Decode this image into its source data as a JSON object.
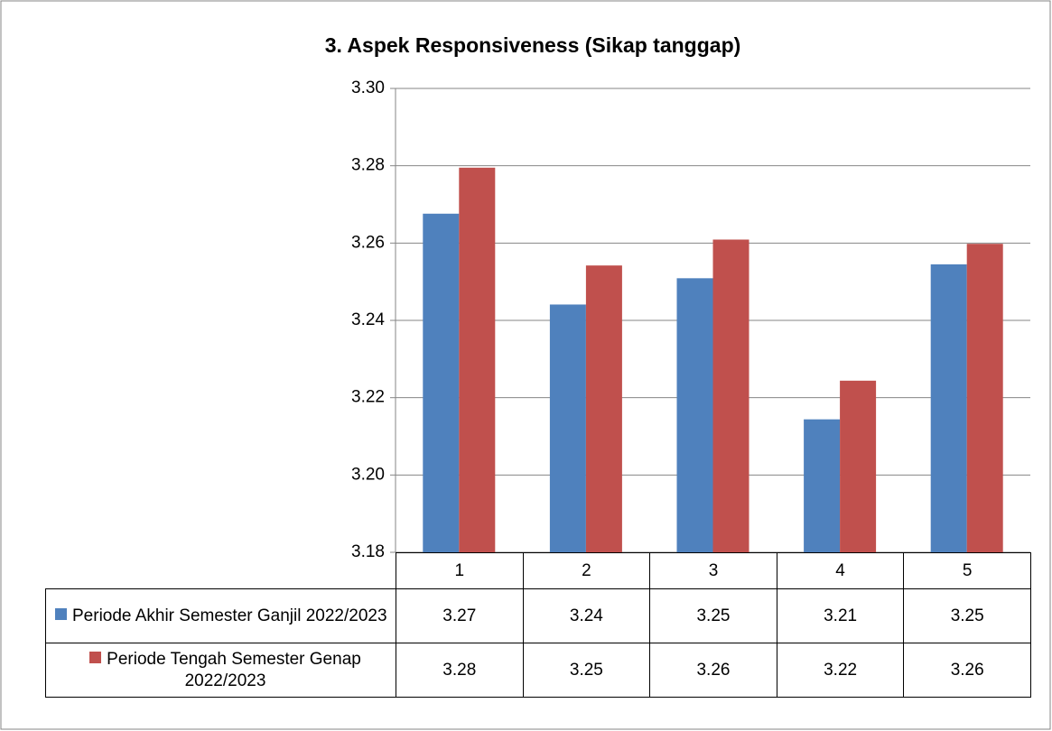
{
  "chart_data": {
    "type": "bar",
    "title": "3. Aspek Responsiveness (Sikap tanggap)",
    "categories": [
      "1",
      "2",
      "3",
      "4",
      "5"
    ],
    "series": [
      {
        "name": "Periode Akhir Semester Ganjil 2022/2023",
        "color": "#4f81bd",
        "values": [
          3.2676,
          3.2441,
          3.2509,
          3.2144,
          3.2545
        ],
        "value_labels": [
          "3.27",
          "3.24",
          "3.25",
          "3.21",
          "3.25"
        ]
      },
      {
        "name": "Periode Tengah Semester Genap 2022/2023",
        "color": "#c0504d",
        "values": [
          3.2795,
          3.2542,
          3.2609,
          3.2244,
          3.2598
        ],
        "value_labels": [
          "3.28",
          "3.25",
          "3.26",
          "3.22",
          "3.26"
        ]
      }
    ],
    "ylim": [
      3.18,
      3.3
    ],
    "yticks": [
      3.18,
      {
        "value": 3.2,
        "label": "3.20"
      },
      3.22,
      3.24,
      3.26,
      3.28,
      {
        "value": 3.3,
        "label": "3.30"
      }
    ],
    "grid": true
  }
}
